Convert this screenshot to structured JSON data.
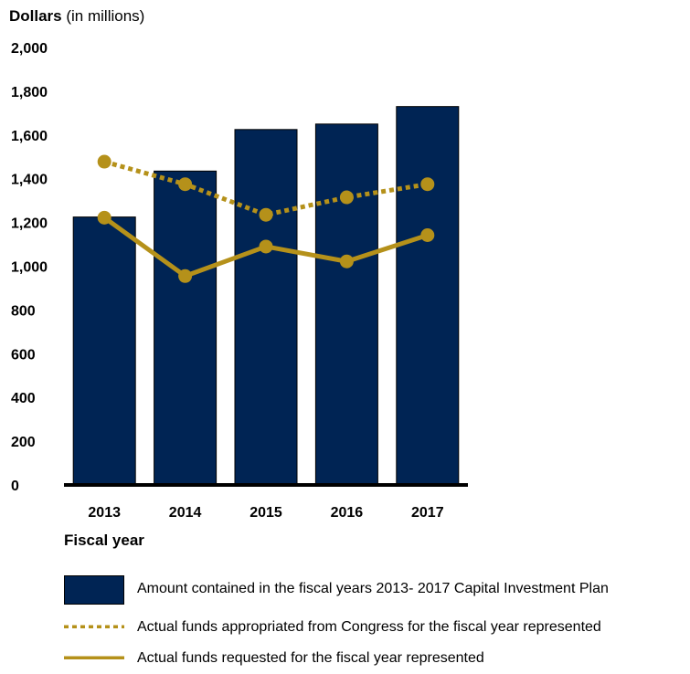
{
  "chart_data": {
    "type": "bar",
    "ylabel_bold": "Dollars",
    "ylabel_rest": " (in millions)",
    "xlabel": "Fiscal year",
    "categories": [
      "2013",
      "2014",
      "2015",
      "2016",
      "2017"
    ],
    "ylim": [
      0,
      2000
    ],
    "yticks": [
      "0",
      "200",
      "400",
      "600",
      "800",
      "1,000",
      "1,200",
      "1,400",
      "1,600",
      "1,800",
      "2,000"
    ],
    "ytick_values": [
      0,
      200,
      400,
      600,
      800,
      1000,
      1200,
      1400,
      1600,
      1800,
      2000
    ],
    "grid": false,
    "legend_position": "bottom",
    "series": [
      {
        "name": "Amount contained in the fiscal years 2013- 2017 Capital Investment Plan",
        "kind": "bar",
        "color": "#002454",
        "values": [
          1225,
          1435,
          1625,
          1650,
          1730
        ]
      },
      {
        "name": "Actual funds appropriated from Congress for the fiscal year represented",
        "kind": "dotted-line",
        "color": "#b5911a",
        "values": [
          1478,
          1375,
          1235,
          1315,
          1375
        ]
      },
      {
        "name": "Actual funds requested for the fiscal year represented",
        "kind": "line",
        "color": "#b5911a",
        "values": [
          1222,
          955,
          1090,
          1022,
          1142
        ]
      }
    ]
  }
}
